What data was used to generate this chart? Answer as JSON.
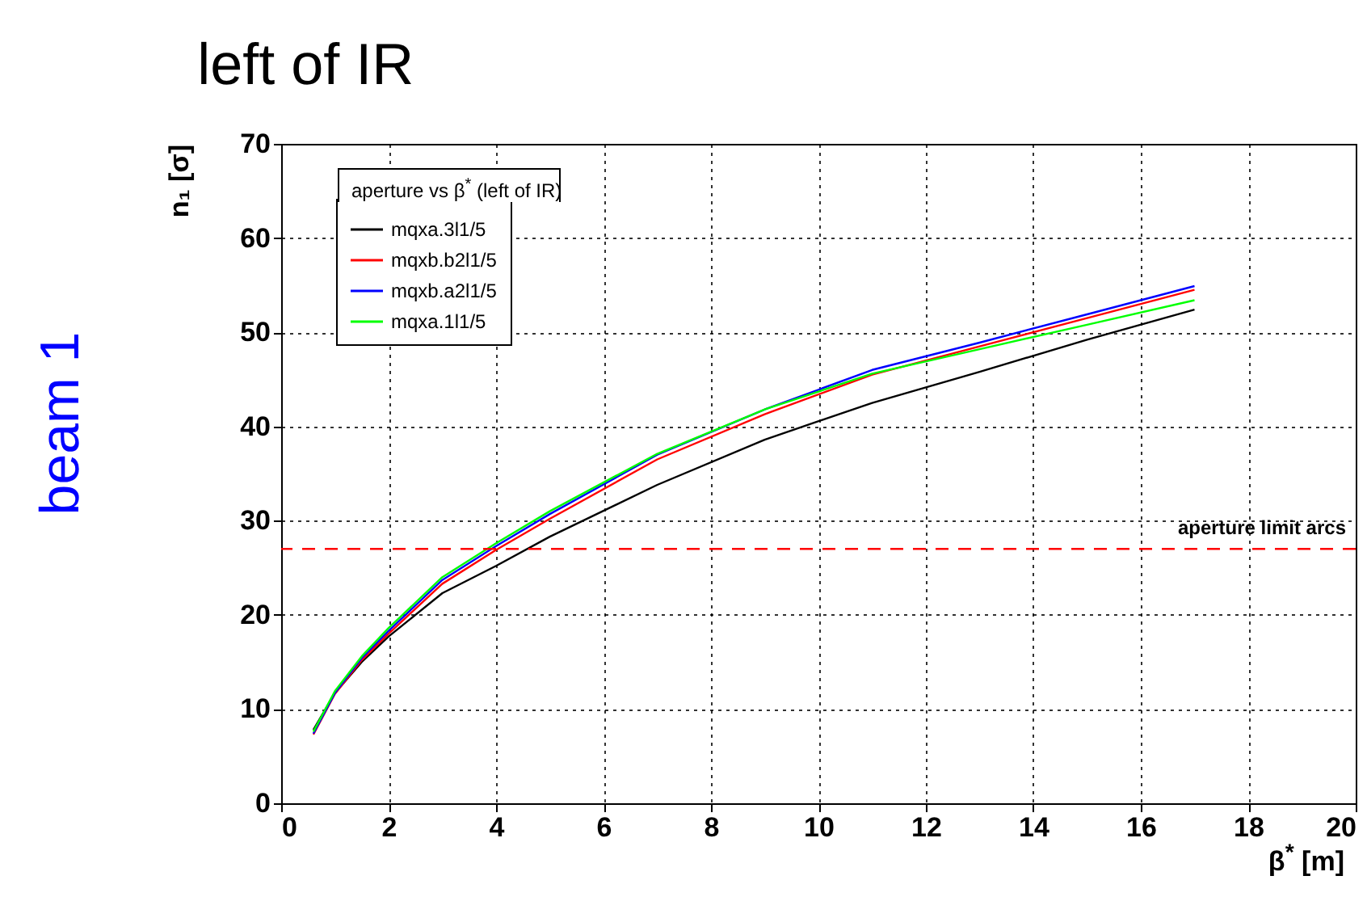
{
  "chart_data": {
    "type": "line",
    "title": "left of IR",
    "xlabel": "β$^{*}$ [m]",
    "ylabel": "n₁ [σ]",
    "legend_title": "aperture vs β$^{*}$ (left of IR)",
    "annotations": [
      "beam 1"
    ],
    "x": [
      0.6,
      1,
      1.5,
      2,
      3,
      4,
      5,
      7,
      9,
      11,
      13,
      15,
      17
    ],
    "series": [
      {
        "name": "mqxa.3l1/5",
        "color": "#000000",
        "values": [
          7.8,
          11.7,
          15.0,
          17.7,
          22.3,
          25.2,
          28.3,
          33.8,
          38.6,
          42.5,
          45.8,
          49.2,
          52.4
        ]
      },
      {
        "name": "mqxb.b2l1/5",
        "color": "#ff0000",
        "values": [
          7.3,
          11.6,
          15.2,
          18.0,
          23.3,
          26.9,
          30.2,
          36.5,
          41.3,
          45.5,
          48.5,
          51.5,
          54.5
        ]
      },
      {
        "name": "mqxb.a2l1/5",
        "color": "#0000ff",
        "values": [
          7.4,
          11.7,
          15.4,
          18.3,
          23.7,
          27.3,
          30.7,
          37.0,
          41.8,
          46.0,
          48.9,
          51.9,
          54.9
        ]
      },
      {
        "name": "mqxa.1l1/5",
        "color": "#00ff00",
        "values": [
          7.6,
          11.9,
          15.6,
          18.6,
          24.0,
          27.6,
          31.0,
          37.1,
          41.8,
          45.6,
          48.2,
          50.8,
          53.4
        ]
      }
    ],
    "ref_lines": [
      {
        "axis": "y",
        "value": 27,
        "label": "aperture limit arcs",
        "color": "#ff0000",
        "line_style": "dashed"
      }
    ],
    "xlim": [
      0,
      20
    ],
    "xticks": [
      0,
      2,
      4,
      6,
      8,
      10,
      12,
      14,
      16,
      18,
      20
    ],
    "ylim": [
      0,
      70
    ],
    "yticks": [
      0,
      10,
      20,
      30,
      40,
      50,
      60,
      70
    ],
    "grid": true,
    "legend": "top left",
    "marker": "none",
    "line_style": "solid"
  }
}
